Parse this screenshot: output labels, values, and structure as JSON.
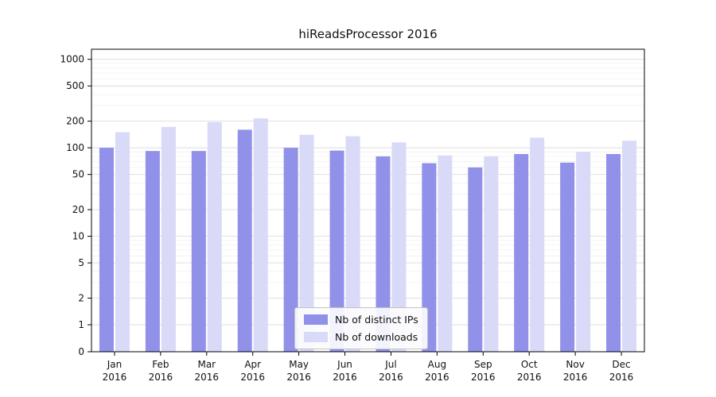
{
  "chart_data": {
    "type": "bar",
    "title": "hiReadsProcessor 2016",
    "yscale": "symlog",
    "grid": true,
    "legend_position": "lower center",
    "xlabel": "",
    "ylabel": "",
    "categories": [
      "Jan 2016",
      "Feb 2016",
      "Mar 2016",
      "Apr 2016",
      "May 2016",
      "Jun 2016",
      "Jul 2016",
      "Aug 2016",
      "Sep 2016",
      "Oct 2016",
      "Nov 2016",
      "Dec 2016"
    ],
    "series": [
      {
        "name": "Nb of distinct IPs",
        "color": "#9191e9",
        "values": [
          100,
          92,
          92,
          160,
          100,
          93,
          80,
          67,
          60,
          85,
          68,
          85
        ]
      },
      {
        "name": "Nb of downloads",
        "color": "#d9d9f8",
        "values": [
          150,
          172,
          195,
          215,
          140,
          135,
          115,
          82,
          80,
          130,
          90,
          120
        ]
      }
    ],
    "yticks": [
      0,
      1,
      2,
      5,
      10,
      20,
      50,
      100,
      200,
      500,
      1000
    ],
    "ylim": [
      0,
      1300
    ]
  }
}
